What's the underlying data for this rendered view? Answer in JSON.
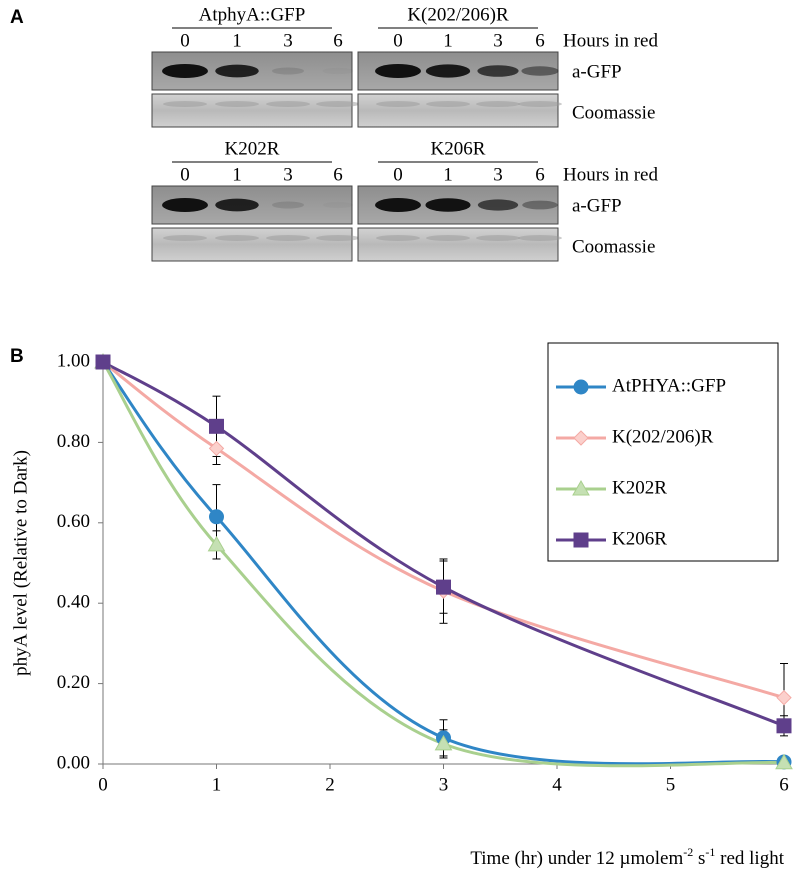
{
  "panel_a": {
    "label": "A",
    "hours_label": "Hours in red",
    "blot_label": "a-GFP",
    "stain_label": "Coomassie",
    "rows": [
      {
        "blots": [
          {
            "title": "AtphyA::GFP",
            "hours": [
              0,
              1,
              3,
              6
            ]
          },
          {
            "title": "K(202/206)R",
            "hours": [
              0,
              1,
              3,
              6
            ]
          }
        ]
      },
      {
        "blots": [
          {
            "title": "K202R",
            "hours": [
              0,
              1,
              3,
              6
            ]
          },
          {
            "title": "K206R",
            "hours": [
              0,
              1,
              3,
              6
            ]
          }
        ]
      }
    ]
  },
  "chart_data": {
    "type": "line",
    "panel_label": "B",
    "ylabel": "phyA level (Relative to Dark)",
    "xlabel": [
      "Time (hr) under 12 µmolem",
      "-2",
      " s",
      "-1",
      " red light"
    ],
    "x": [
      0,
      1,
      3,
      6
    ],
    "series": [
      {
        "name": "AtPHYA::GFP",
        "color": "#2f86c6",
        "marker": "circle",
        "values": [
          1.0,
          0.615,
          0.065,
          0.005
        ],
        "errors": [
          0,
          0.08,
          0.045,
          0.005
        ]
      },
      {
        "name": "K(202/206)R",
        "color": "#f4a9a4",
        "marker": "diamond",
        "values": [
          1.0,
          0.785,
          0.43,
          0.165
        ],
        "errors": [
          0,
          0.04,
          0.08,
          0.085
        ]
      },
      {
        "name": "K202R",
        "color": "#a9d08e",
        "marker": "triangle",
        "values": [
          1.0,
          0.545,
          0.05,
          0.003
        ],
        "errors": [
          0,
          0.035,
          0.035,
          0
        ]
      },
      {
        "name": "K206R",
        "color": "#5f3f8b",
        "marker": "square",
        "values": [
          1.0,
          0.84,
          0.44,
          0.095
        ],
        "errors": [
          0,
          0.075,
          0.065,
          0.025
        ]
      }
    ],
    "xlim": [
      0,
      6
    ],
    "xticks": [
      0,
      1,
      2,
      3,
      4,
      5,
      6
    ],
    "ylim": [
      0,
      1
    ],
    "yticks": [
      {
        "value": 0,
        "label": "0.00"
      },
      {
        "value": 0.2,
        "label": "0.20"
      },
      {
        "value": 0.4,
        "label": "0.40"
      },
      {
        "value": 0.6,
        "label": "0.60"
      },
      {
        "value": 0.8,
        "label": "0.80"
      },
      {
        "value": 1,
        "label": "1.00"
      }
    ],
    "legend": "upper-right"
  }
}
